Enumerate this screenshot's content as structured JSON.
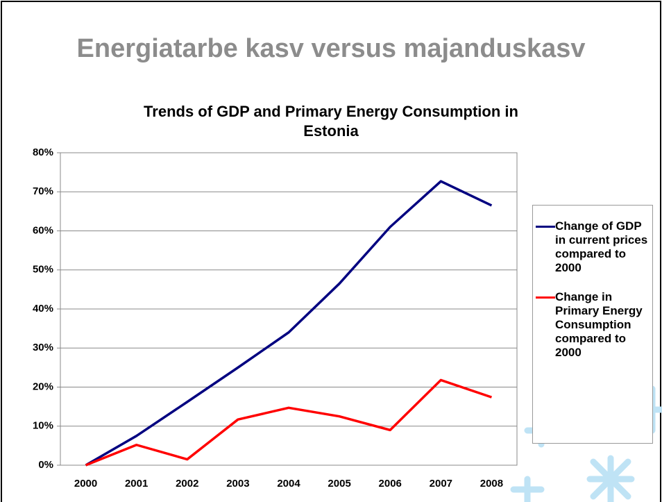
{
  "slide": {
    "title": "Energiatarbe kasv versus majanduskasv"
  },
  "chart_data": {
    "type": "line",
    "title": "Trends of GDP and Primary Energy Consumption in Estonia",
    "categories": [
      "2000",
      "2001",
      "2002",
      "2003",
      "2004",
      "2005",
      "2006",
      "2007",
      "2008"
    ],
    "series": [
      {
        "name": "Change of GDP in current prices compared to 2000",
        "color": "#000080",
        "values": [
          0,
          7.5,
          16.2,
          25,
          34,
          46.5,
          61,
          72.7,
          66.5
        ]
      },
      {
        "name": "Change in Primary Energy Consumption compared to 2000",
        "color": "#ff0000",
        "values": [
          0,
          5.2,
          1.5,
          11.7,
          14.7,
          12.5,
          9,
          21.8,
          17.4
        ]
      }
    ],
    "ylim": [
      0,
      80
    ],
    "yticks": [
      {
        "value": 0,
        "label": "0%"
      },
      {
        "value": 10,
        "label": "10%"
      },
      {
        "value": 20,
        "label": "20%"
      },
      {
        "value": 30,
        "label": "30%"
      },
      {
        "value": 40,
        "label": "40%"
      },
      {
        "value": 50,
        "label": "50%"
      },
      {
        "value": 60,
        "label": "60%"
      },
      {
        "value": 70,
        "label": "70%"
      },
      {
        "value": 80,
        "label": "80%"
      }
    ],
    "grid": true,
    "legend": "right"
  }
}
